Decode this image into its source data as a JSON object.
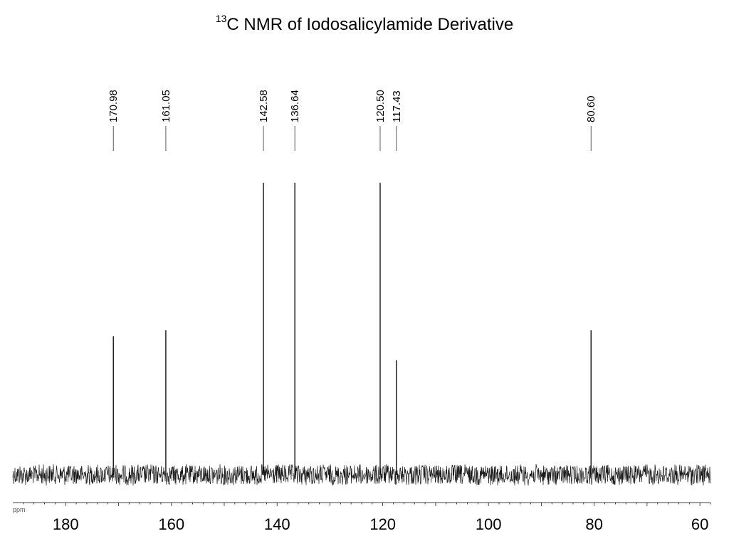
{
  "chart_data": {
    "type": "line",
    "title_superscript": "13",
    "title_text": "C NMR of Iodosalicylamide Derivative",
    "x_unit_label": "ppm",
    "x_axis_reversed": true,
    "xlim": [
      190,
      58
    ],
    "x_ticks": [
      180,
      160,
      140,
      120,
      100,
      80,
      60
    ],
    "grid": false,
    "peaks": [
      {
        "ppm": 170.98,
        "label": "170.98",
        "relative_intensity": 0.46
      },
      {
        "ppm": 161.05,
        "label": "161.05",
        "relative_intensity": 0.48
      },
      {
        "ppm": 142.58,
        "label": "142.58",
        "relative_intensity": 0.97
      },
      {
        "ppm": 136.64,
        "label": "136.64",
        "relative_intensity": 0.97
      },
      {
        "ppm": 120.5,
        "label": "120.50",
        "relative_intensity": 0.97
      },
      {
        "ppm": 117.43,
        "label": "117.43",
        "relative_intensity": 0.38
      },
      {
        "ppm": 80.6,
        "label": "80.60",
        "relative_intensity": 0.48
      }
    ]
  }
}
